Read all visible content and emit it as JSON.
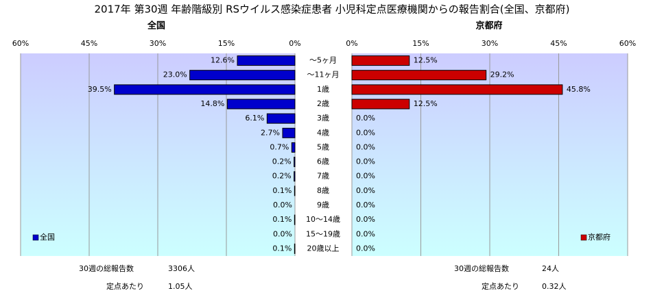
{
  "title": "2017年 第30週 年齢階級別 RSウイルス感染症患者 小児科定点医療機関からの報告割合(全国、京都府)",
  "chart_data": [
    {
      "type": "bar",
      "orientation": "horizontal",
      "title": "全国",
      "categories": [
        "～5ヶ月",
        "～11ヶ月",
        "1歳",
        "2歳",
        "3歳",
        "4歳",
        "5歳",
        "6歳",
        "7歳",
        "8歳",
        "9歳",
        "10～14歳",
        "15～19歳",
        "20歳以上"
      ],
      "series": [
        {
          "name": "全国",
          "color": "#0000cc",
          "values": [
            12.6,
            23.0,
            39.5,
            14.8,
            6.1,
            2.7,
            0.7,
            0.2,
            0.2,
            0.1,
            0.0,
            0.1,
            0.0,
            0.1
          ],
          "value_labels": [
            "12.6%",
            "23.0%",
            "39.5%",
            "14.8%",
            "6.1%",
            "2.7%",
            "0.7%",
            "0.2%",
            "0.2%",
            "0.1%",
            "0.0%",
            "0.1%",
            "0.0%",
            "0.1%"
          ]
        }
      ],
      "xlim": [
        60,
        0
      ],
      "xticks": [
        {
          "value": 60,
          "label": "60%"
        },
        {
          "value": 45,
          "label": "45%"
        },
        {
          "value": 30,
          "label": "30%"
        },
        {
          "value": 15,
          "label": "15%"
        },
        {
          "value": 0,
          "label": "0%"
        }
      ],
      "grid": true,
      "legend": "bottom-left",
      "notes": [
        {
          "label": "30週の総報告数",
          "text": "3306人"
        },
        {
          "label": "定点あたり",
          "text": "1.05人"
        }
      ]
    },
    {
      "type": "bar",
      "orientation": "horizontal",
      "title": "京都府",
      "series": [
        {
          "name": "京都府",
          "color": "#cc0000",
          "values": [
            12.5,
            29.2,
            45.8,
            12.5,
            0.0,
            0.0,
            0.0,
            0.0,
            0.0,
            0.0,
            0.0,
            0.0,
            0.0,
            0.0
          ],
          "value_labels": [
            "12.5%",
            "29.2%",
            "45.8%",
            "12.5%",
            "0.0%",
            "0.0%",
            "0.0%",
            "0.0%",
            "0.0%",
            "0.0%",
            "0.0%",
            "0.0%",
            "0.0%",
            "0.0%"
          ]
        }
      ],
      "xlim": [
        0,
        60
      ],
      "xticks": [
        {
          "value": 0,
          "label": "0%"
        },
        {
          "value": 15,
          "label": "15%"
        },
        {
          "value": 30,
          "label": "30%"
        },
        {
          "value": 45,
          "label": "45%"
        },
        {
          "value": 60,
          "label": "60%"
        }
      ],
      "grid": true,
      "legend": "bottom-right",
      "notes": [
        {
          "label": "30週の総報告数",
          "text": "24人"
        },
        {
          "label": "定点あたり",
          "text": "0.32人"
        }
      ]
    }
  ]
}
